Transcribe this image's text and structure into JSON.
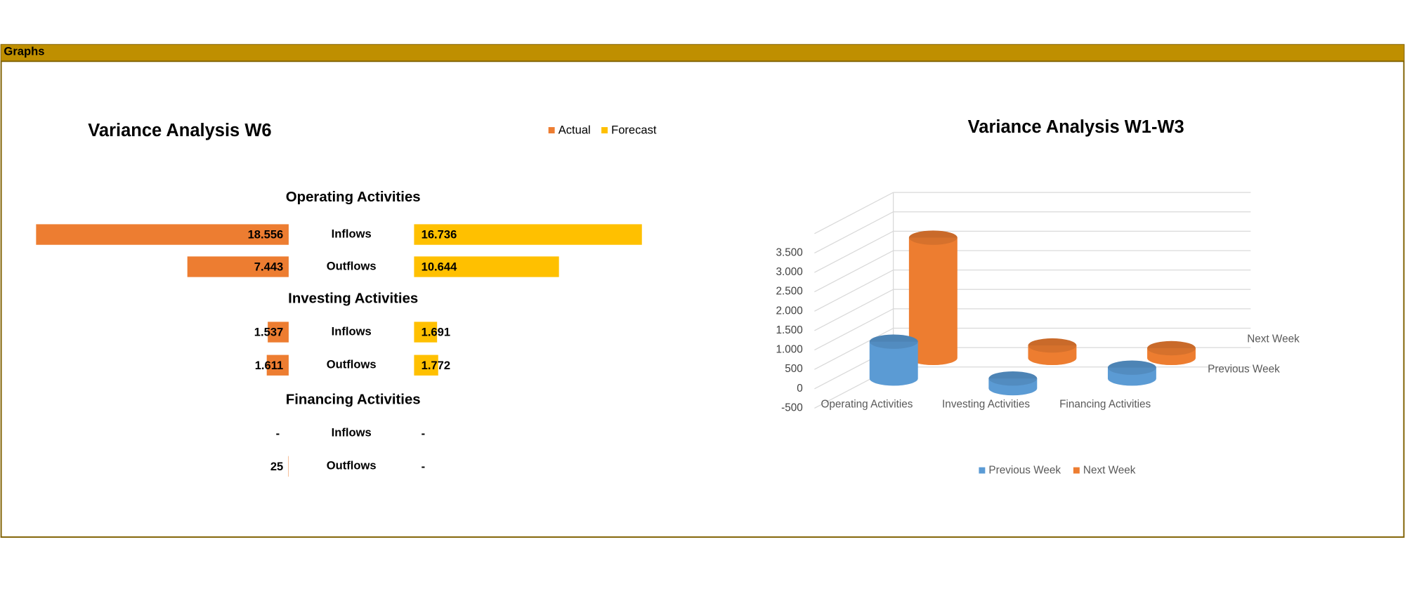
{
  "header": {
    "title": "Graphs"
  },
  "chart_data": [
    {
      "type": "butterfly_bar",
      "title": "Variance Analysis  W6",
      "legend": "top-right",
      "groups": [
        "Operating Activities",
        "Investing Activities",
        "Financing Activities"
      ],
      "categories": [
        "Inflows",
        "Outflows",
        "Inflows",
        "Outflows",
        "Inflows",
        "Outflows"
      ],
      "series": [
        {
          "name": "Actual",
          "color": "#ed7d31",
          "values": [
            18556,
            7443,
            1537,
            1611,
            0,
            25
          ],
          "value_labels": [
            "18.556",
            "7.443",
            "1.537",
            "1.611",
            "-",
            "25"
          ]
        },
        {
          "name": "Forecast",
          "color": "#ffc000",
          "values": [
            16736,
            10644,
            1691,
            1772,
            0,
            0
          ],
          "value_labels": [
            "16.736",
            "10.644",
            "1.691",
            "1.772",
            "-",
            "-"
          ]
        }
      ]
    },
    {
      "type": "bar3d",
      "title": "Variance Analysis  W1-W3",
      "legend": "bottom",
      "categories": [
        "Operating Activities",
        "Investing Activities",
        "Financing Activities"
      ],
      "series": [
        {
          "name": "Previous Week",
          "color": "#5b9bd5",
          "values": [
            950,
            -250,
            280
          ]
        },
        {
          "name": "Next Week",
          "color": "#ed7d31",
          "values": [
            3100,
            320,
            250
          ]
        }
      ],
      "ylim": [
        -500,
        4000
      ],
      "yticks": [
        -500,
        0,
        500,
        {
          "value": 1000,
          "label": "1.000"
        },
        {
          "value": 1500,
          "label": "1.500"
        },
        {
          "value": 2000,
          "label": "2.000"
        },
        {
          "value": 2500,
          "label": "2.500"
        },
        {
          "value": 3000,
          "label": "3.000"
        },
        {
          "value": 3500,
          "label": "3.500"
        }
      ],
      "grid": true
    }
  ]
}
